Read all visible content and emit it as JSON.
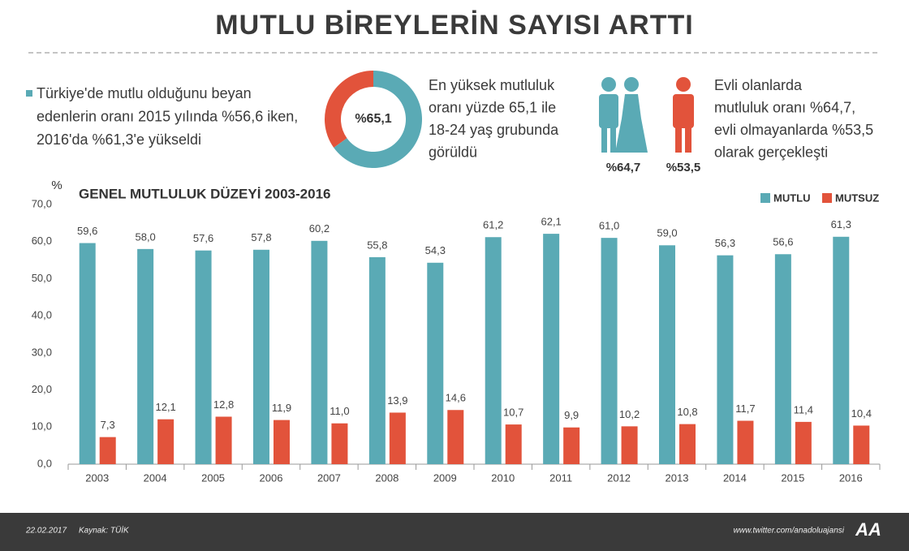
{
  "header": {
    "title": "MUTLU BİREYLERİN SAYISI ARTTI"
  },
  "facts": [
    {
      "lines": [
        "Türkiye'de mutlu olduğunu beyan",
        "edenlerin oranı 2015 yılında %56,6 iken,",
        "2016'da %61,3'e yükseldi"
      ]
    },
    {
      "lines": [
        "En yüksek mutluluk",
        "oranı yüzde 65,1 ile",
        "18-24 yaş grubunda",
        "görüldü"
      ]
    },
    {
      "lines": [
        "Evli olanlarda",
        "mutluluk oranı %64,7,",
        "evli olmayanlarda %53,5",
        "olarak gerçekleşti"
      ]
    }
  ],
  "icons": {
    "married": "%64,7",
    "single": "%53,5"
  },
  "chart_data": [
    {
      "type": "bar",
      "title": "GENEL MUTLULUK DÜZEYİ 2003-2016",
      "y_unit": "%",
      "categories": [
        "2003",
        "2004",
        "2005",
        "2006",
        "2007",
        "2008",
        "2009",
        "2010",
        "2011",
        "2012",
        "2013",
        "2014",
        "2015",
        "2016"
      ],
      "series": [
        {
          "name": "MUTLU",
          "color": "#5aaab5",
          "values": [
            59.6,
            58.0,
            57.6,
            57.8,
            60.2,
            55.8,
            54.3,
            61.2,
            62.1,
            61.0,
            59.0,
            56.3,
            56.6,
            61.3
          ],
          "value_labels": [
            "59,6",
            "58,0",
            "57,6",
            "57,8",
            "60,2",
            "55,8",
            "54,3",
            "61,2",
            "62,1",
            "61,0",
            "59,0",
            "56,3",
            "56,6",
            "61,3"
          ]
        },
        {
          "name": "MUTSUZ",
          "color": "#e2533b",
          "values": [
            7.3,
            12.1,
            12.8,
            11.9,
            11.0,
            13.9,
            14.6,
            10.7,
            9.9,
            10.2,
            10.8,
            11.7,
            11.4,
            10.4
          ],
          "value_labels": [
            "7,3",
            "12,1",
            "12,8",
            "11,9",
            "11,0",
            "13,9",
            "14,6",
            "10,7",
            "9,9",
            "10,2",
            "10,8",
            "11,7",
            "11,4",
            "10,4"
          ]
        }
      ],
      "ylim": [
        0,
        70
      ],
      "yticks": [
        {
          "value": 0,
          "label": "0,0"
        },
        {
          "value": 10,
          "label": "10,0"
        },
        {
          "value": 20,
          "label": "20,0"
        },
        {
          "value": 30,
          "label": "30,0"
        },
        {
          "value": 40,
          "label": "40,0"
        },
        {
          "value": 50,
          "label": "50,0"
        },
        {
          "value": 60,
          "label": "60,0"
        },
        {
          "value": 70,
          "label": "70,0"
        }
      ],
      "grid": false,
      "legend": "top-right"
    },
    {
      "type": "pie",
      "values": [
        65.1
      ],
      "value_labels": [
        "%65,1"
      ],
      "colors": [
        "#5aaab5"
      ],
      "rest_color": "#e2533b"
    }
  ],
  "footer": {
    "date": "22.02.2017",
    "source": "Kaynak: TÜİK",
    "url": "www.twitter.com/anadoluajansi",
    "logo": "AA"
  }
}
